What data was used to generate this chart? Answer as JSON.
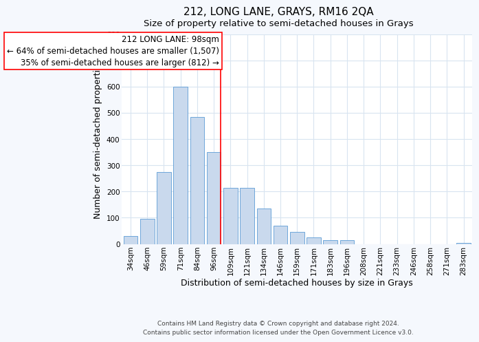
{
  "title": "212, LONG LANE, GRAYS, RM16 2QA",
  "subtitle": "Size of property relative to semi-detached houses in Grays",
  "xlabel": "Distribution of semi-detached houses by size in Grays",
  "ylabel": "Number of semi-detached properties",
  "categories": [
    "34sqm",
    "46sqm",
    "59sqm",
    "71sqm",
    "84sqm",
    "96sqm",
    "109sqm",
    "121sqm",
    "134sqm",
    "146sqm",
    "159sqm",
    "171sqm",
    "183sqm",
    "196sqm",
    "208sqm",
    "221sqm",
    "233sqm",
    "246sqm",
    "258sqm",
    "271sqm",
    "283sqm"
  ],
  "values": [
    30,
    95,
    275,
    600,
    485,
    350,
    215,
    215,
    135,
    70,
    45,
    25,
    15,
    15,
    0,
    0,
    0,
    0,
    0,
    0,
    5
  ],
  "bar_color": "#c9d9ed",
  "bar_edge_color": "#5b9bd5",
  "vline_x_index": 5,
  "vline_color": "red",
  "annotation_title": "212 LONG LANE: 98sqm",
  "annotation_line1": "← 64% of semi-detached houses are smaller (1,507)",
  "annotation_line2": "35% of semi-detached houses are larger (812) →",
  "ylim": [
    0,
    800
  ],
  "yticks": [
    0,
    100,
    200,
    300,
    400,
    500,
    600,
    700,
    800
  ],
  "footer_line1": "Contains HM Land Registry data © Crown copyright and database right 2024.",
  "footer_line2": "Contains public sector information licensed under the Open Government Licence v3.0.",
  "plot_bg_color": "#ffffff",
  "fig_bg_color": "#f5f8fd",
  "grid_color": "#d8e4f0",
  "title_fontsize": 11,
  "subtitle_fontsize": 9.5,
  "axis_label_fontsize": 9,
  "tick_fontsize": 7.5,
  "annotation_fontsize": 8.5,
  "footer_fontsize": 6.5
}
